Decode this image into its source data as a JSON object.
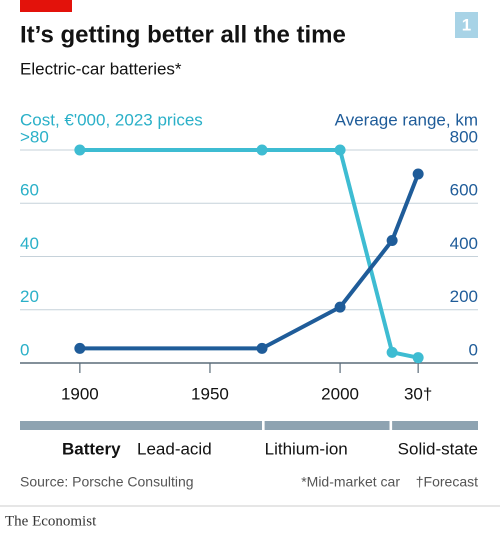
{
  "chart_data": {
    "type": "line",
    "title": "It’s getting better all the time",
    "subtitle": "Electric-car batteries*",
    "badge": "1",
    "y_label": "Cost, €'000, 2023 prices",
    "y2_label": "Average range, km",
    "xlim": [
      1877,
      2053
    ],
    "xticks": [
      1900,
      1950,
      2000,
      {
        "value": 2030,
        "label": "30†"
      }
    ],
    "ylim": [
      0,
      80
    ],
    "yticks": [
      0,
      20,
      40,
      60,
      {
        "value": 80,
        "label": ">80"
      }
    ],
    "y2lim": [
      0,
      800
    ],
    "y2ticks": [
      0,
      200,
      400,
      600,
      800
    ],
    "grid": true,
    "series": [
      {
        "name": "Cost",
        "color": "#3ebcd2",
        "x": [
          1900,
          1970,
          2000,
          2020,
          2030
        ],
        "values": [
          80,
          80,
          80,
          4,
          2
        ]
      },
      {
        "name": "Average range",
        "color": "#1f5c99",
        "axis": "y2",
        "x": [
          1900,
          1970,
          2000,
          2020,
          2030
        ],
        "values": [
          55,
          55,
          210,
          460,
          710
        ]
      }
    ],
    "battery_label": "Battery",
    "battery_types": [
      {
        "label": "Lead-acid",
        "start": 1877,
        "end": 1970
      },
      {
        "label": "Lithium-ion",
        "start": 1971,
        "end": 2019
      },
      {
        "label": "Solid-state",
        "start": 2020,
        "end": 2053
      }
    ],
    "source": "Source: Porsche Consulting",
    "notes": [
      "*Mid-market car",
      "†Forecast"
    ],
    "brand": "The Economist"
  }
}
